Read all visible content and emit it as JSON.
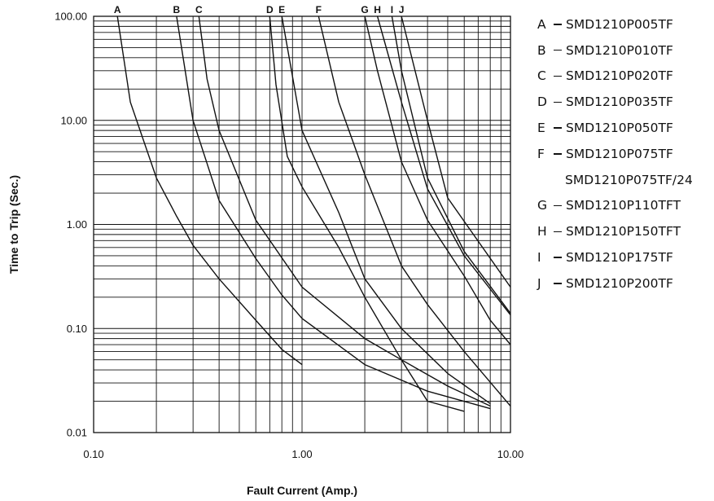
{
  "chart_data": {
    "type": "line",
    "title": "",
    "xlabel": "Fault Current (Amp.)",
    "ylabel": "Time to Trip (Sec.)",
    "x_scale": "log",
    "y_scale": "log",
    "xlim": [
      0.1,
      10
    ],
    "ylim": [
      0.01,
      100
    ],
    "grid": true,
    "x_ticks": [
      0.1,
      1,
      10
    ],
    "x_tick_labels": [
      "0.10",
      "1.00",
      "10.00"
    ],
    "y_ticks": [
      0.01,
      0.1,
      1,
      10,
      100
    ],
    "y_tick_labels": [
      "0.01",
      "0.10",
      "1.00",
      "10.00",
      "100.00"
    ],
    "legend_position": "right",
    "series": [
      {
        "name": "A",
        "x": [
          0.13,
          0.15,
          0.2,
          0.25,
          0.3,
          0.4,
          0.6,
          0.8,
          1.0
        ],
        "y": [
          100,
          15,
          2.8,
          1.2,
          0.63,
          0.3,
          0.12,
          0.063,
          0.045
        ]
      },
      {
        "name": "B",
        "x": [
          0.25,
          0.3,
          0.4,
          0.6,
          0.8,
          1.0,
          2.0,
          4.0,
          8.0
        ],
        "y": [
          100,
          10,
          1.7,
          0.47,
          0.21,
          0.125,
          0.045,
          0.025,
          0.017
        ]
      },
      {
        "name": "C",
        "x": [
          0.32,
          0.35,
          0.4,
          0.6,
          1.0,
          2.0,
          3.0,
          5.0,
          8.0
        ],
        "y": [
          100,
          25,
          8,
          1.1,
          0.25,
          0.08,
          0.05,
          0.028,
          0.018
        ]
      },
      {
        "name": "D",
        "x": [
          0.7,
          0.75,
          0.85,
          1.0,
          1.5,
          2.0,
          3.0,
          4.0,
          6.0
        ],
        "y": [
          100,
          22,
          4.5,
          2.3,
          0.6,
          0.2,
          0.05,
          0.02,
          0.016
        ]
      },
      {
        "name": "E",
        "x": [
          0.8,
          1.0,
          1.5,
          2.0,
          3.0,
          5.0,
          8.0
        ],
        "y": [
          100,
          8,
          1.3,
          0.3,
          0.1,
          0.037,
          0.019
        ]
      },
      {
        "name": "F",
        "x": [
          1.2,
          1.5,
          2.0,
          3.0,
          4.0,
          6.0,
          10.0
        ],
        "y": [
          100,
          15,
          3.0,
          0.4,
          0.17,
          0.06,
          0.018
        ]
      },
      {
        "name": "G",
        "x": [
          2.0,
          2.3,
          3.0,
          4.0,
          6.0,
          8.0,
          10.0
        ],
        "y": [
          100,
          30,
          4.0,
          1.1,
          0.32,
          0.12,
          0.07
        ]
      },
      {
        "name": "H",
        "x": [
          2.3,
          3.0,
          4.0,
          6.0,
          10.0
        ],
        "y": [
          100,
          15,
          2.2,
          0.5,
          0.135
        ]
      },
      {
        "name": "I",
        "x": [
          2.7,
          3.0,
          4.0,
          6.0,
          10.0
        ],
        "y": [
          100,
          30,
          2.8,
          0.55,
          0.14
        ]
      },
      {
        "name": "J",
        "x": [
          3.0,
          4.0,
          5.0,
          10.0
        ],
        "y": [
          100,
          10,
          1.8,
          0.25
        ]
      }
    ]
  },
  "legend": [
    {
      "letter": "A",
      "part": "SMD1210P005TF"
    },
    {
      "letter": "B",
      "part": "SMD1210P010TF"
    },
    {
      "letter": "C",
      "part": "SMD1210P020TF"
    },
    {
      "letter": "D",
      "part": "SMD1210P035TF"
    },
    {
      "letter": "E",
      "part": "SMD1210P050TF"
    },
    {
      "letter": "F",
      "part": "SMD1210P075TF",
      "part2": "SMD1210P075TF/24"
    },
    {
      "letter": "G",
      "part": "SMD1210P110TFT"
    },
    {
      "letter": "H",
      "part": "SMD1210P150TFT"
    },
    {
      "letter": "I",
      "part": "SMD1210P175TF"
    },
    {
      "letter": "J",
      "part": "SMD1210P200TF"
    }
  ]
}
